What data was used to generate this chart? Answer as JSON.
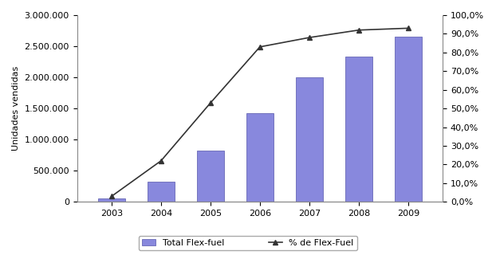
{
  "years": [
    2003,
    2004,
    2005,
    2006,
    2007,
    2008,
    2009
  ],
  "bar_values": [
    50000,
    330000,
    820000,
    1430000,
    2000000,
    2330000,
    2650000
  ],
  "line_values": [
    3.0,
    22.0,
    53.0,
    83.0,
    88.0,
    92.0,
    93.0
  ],
  "bar_color": "#8888dd",
  "bar_edgecolor": "#5555aa",
  "line_color": "#333333",
  "marker": "^",
  "marker_fill": "#333333",
  "ylabel_left": "Unidades vendidas",
  "ylim_left": [
    0,
    3000000
  ],
  "ylim_right": [
    0,
    100
  ],
  "yticks_left": [
    0,
    500000,
    1000000,
    1500000,
    2000000,
    2500000,
    3000000
  ],
  "yticks_right": [
    0,
    10,
    20,
    30,
    40,
    50,
    60,
    70,
    80,
    90,
    100
  ],
  "legend_bar_label": "Total Flex-fuel",
  "legend_line_label": "% de Flex-Fuel",
  "bg_color": "#ffffff",
  "plot_bg_color": "#ffffff",
  "axis_fontsize": 8,
  "tick_fontsize": 8,
  "ylabel_fontsize": 8,
  "bar_width": 0.55,
  "xlim": [
    2002.3,
    2009.7
  ]
}
